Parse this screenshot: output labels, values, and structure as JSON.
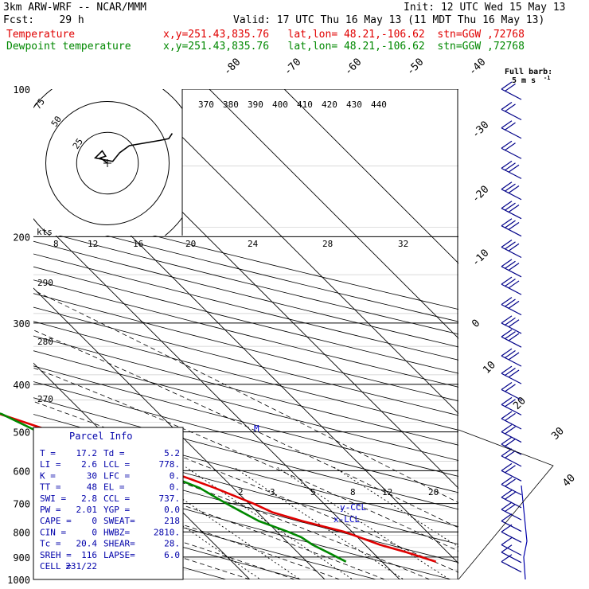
{
  "header": {
    "model": "3km ARW-WRF -- NCAR/MMM",
    "init": "Init: 12 UTC Wed 15 May 13",
    "fcst": "Fcst:    29 h",
    "valid": "Valid: 17 UTC Thu 16 May 13 (11 MDT Thu 16 May 13)",
    "temp_label": "Temperature",
    "temp_loc": "x,y=251.43,835.76   lat,lon= 48.21,-106.62  stn=GGW ,72768",
    "dew_label": "Dewpoint temperature",
    "dew_loc": "x,y=251.43,835.76   lat,lon= 48.21,-106.62  stn=GGW ,72768"
  },
  "barb_key": {
    "line1": "Full barb:",
    "line2": "5 m s"
  },
  "hodograph": {
    "unit": "kts",
    "rings": [
      "75",
      "50",
      "25"
    ]
  },
  "parcel_info": {
    "title": "Parcel Info",
    "rows": [
      {
        "l1": "T  =",
        "v1": "17.2",
        "l2": "Td =",
        "v2": "5.2"
      },
      {
        "l1": "LI =",
        "v1": "2.6",
        "l2": "LCL =",
        "v2": "778."
      },
      {
        "l1": "K  =",
        "v1": "30",
        "l2": "LFC =",
        "v2": "0."
      },
      {
        "l1": "TT =",
        "v1": "48",
        "l2": "EL  =",
        "v2": "0."
      },
      {
        "l1": "SWI =",
        "v1": "2.8",
        "l2": "CCL =",
        "v2": "737."
      },
      {
        "l1": "PW =",
        "v1": "2.01",
        "l2": "YGP =",
        "v2": "0.0"
      },
      {
        "l1": "CAPE =",
        "v1": "0",
        "l2": "SWEAT=",
        "v2": "218"
      },
      {
        "l1": "CIN =",
        "v1": "0",
        "l2": "HWBZ=",
        "v2": "2810."
      },
      {
        "l1": "Tc =",
        "v1": "20.4",
        "l2": "SHEAR=",
        "v2": "28."
      },
      {
        "l1": "SREH =",
        "v1": "116",
        "l2": "LAPSE=",
        "v2": "6.0"
      },
      {
        "l1": "CELL =",
        "v1": "231/22",
        "l2": "",
        "v2": ""
      }
    ]
  },
  "chart_data": {
    "type": "line",
    "title": "",
    "pressure_levels": [
      1000,
      900,
      800,
      700,
      600,
      500,
      400,
      300,
      200,
      100
    ],
    "pressure_labels": [
      "1000",
      "900",
      "800",
      "700",
      "600",
      "500",
      "400",
      "300",
      "200",
      "100"
    ],
    "isotherm_labels": [
      "-80",
      "-70",
      "-60",
      "-50",
      "-40",
      "-30",
      "-20",
      "-10",
      "0",
      "10",
      "20",
      "30",
      "40"
    ],
    "theta_labels": [
      "370",
      "380",
      "390",
      "400",
      "410",
      "420",
      "430",
      "440"
    ],
    "theta_left_labels": [
      "290",
      "280",
      "270"
    ],
    "mixing_ratio_labels_200": [
      "8",
      "12",
      "16",
      "20",
      "24",
      "28",
      "32"
    ],
    "mixing_ratio_labels_700": [
      "2",
      "3",
      "5",
      "8",
      "12",
      "20"
    ],
    "lcl_label": "x-LCL",
    "ccl_label": "y-CCL",
    "m_label": "M",
    "series": [
      {
        "name": "Temperature",
        "color": "#e00000",
        "points": [
          [
            920,
            17.2
          ],
          [
            880,
            14.5
          ],
          [
            850,
            12.0
          ],
          [
            800,
            9.0
          ],
          [
            760,
            4.8
          ],
          [
            730,
            2.0
          ],
          [
            700,
            0.6
          ],
          [
            650,
            -2.5
          ],
          [
            600,
            -6.5
          ],
          [
            550,
            -11.0
          ],
          [
            500,
            -16.5
          ],
          [
            450,
            -22.5
          ],
          [
            400,
            -28.5
          ],
          [
            350,
            -35.5
          ],
          [
            300,
            -42.5
          ],
          [
            260,
            -49.5
          ],
          [
            230,
            -55.5
          ],
          [
            210,
            -57.5
          ],
          [
            190,
            -56.5
          ],
          [
            170,
            -53.5
          ],
          [
            150,
            -50.0
          ],
          [
            130,
            -46.5
          ],
          [
            115,
            -44.0
          ],
          [
            100,
            -42.5
          ]
        ]
      },
      {
        "name": "Dewpoint temperature",
        "color": "#008800",
        "points": [
          [
            920,
            5.2
          ],
          [
            880,
            4.0
          ],
          [
            850,
            3.0
          ],
          [
            820,
            2.5
          ],
          [
            800,
            1.5
          ],
          [
            760,
            -1.0
          ],
          [
            730,
            -2.0
          ],
          [
            700,
            -3.0
          ],
          [
            650,
            -4.5
          ],
          [
            600,
            -8.0
          ],
          [
            560,
            -13.0
          ],
          [
            520,
            -18.0
          ],
          [
            500,
            -18.5
          ],
          [
            460,
            -21.0
          ],
          [
            420,
            -27.0
          ],
          [
            380,
            -33.0
          ],
          [
            340,
            -39.5
          ],
          [
            300,
            -46.5
          ],
          [
            270,
            -51.0
          ],
          [
            250,
            -55.0
          ],
          [
            230,
            -59.0
          ],
          [
            200,
            -63.0
          ],
          [
            180,
            -66.5
          ],
          [
            160,
            -70.0
          ],
          [
            140,
            -74.0
          ],
          [
            130,
            -78.0
          ],
          [
            120,
            -82.0
          ],
          [
            110,
            -87.0
          ],
          [
            100,
            -91.0
          ]
        ]
      }
    ],
    "wind_barbs": [
      {
        "p": 920,
        "speed_ms": 5
      },
      {
        "p": 880,
        "speed_ms": 5
      },
      {
        "p": 850,
        "speed_ms": 5
      },
      {
        "p": 800,
        "speed_ms": 5
      },
      {
        "p": 760,
        "speed_ms": 5
      },
      {
        "p": 720,
        "speed_ms": 10
      },
      {
        "p": 680,
        "speed_ms": 10
      },
      {
        "p": 640,
        "speed_ms": 10
      },
      {
        "p": 600,
        "speed_ms": 10
      },
      {
        "p": 560,
        "speed_ms": 10
      },
      {
        "p": 530,
        "speed_ms": 10
      },
      {
        "p": 500,
        "speed_ms": 10
      },
      {
        "p": 470,
        "speed_ms": 10
      },
      {
        "p": 440,
        "speed_ms": 10
      },
      {
        "p": 410,
        "speed_ms": 10
      },
      {
        "p": 380,
        "speed_ms": 15
      },
      {
        "p": 350,
        "speed_ms": 15
      },
      {
        "p": 320,
        "speed_ms": 15
      },
      {
        "p": 300,
        "speed_ms": 15
      },
      {
        "p": 275,
        "speed_ms": 15
      },
      {
        "p": 250,
        "speed_ms": 15
      },
      {
        "p": 230,
        "speed_ms": 15
      },
      {
        "p": 210,
        "speed_ms": 15
      },
      {
        "p": 190,
        "speed_ms": 15
      },
      {
        "p": 175,
        "speed_ms": 15
      },
      {
        "p": 160,
        "speed_ms": 15
      },
      {
        "p": 145,
        "speed_ms": 15
      },
      {
        "p": 132,
        "speed_ms": 10
      },
      {
        "p": 120,
        "speed_ms": 10
      },
      {
        "p": 110,
        "speed_ms": 10
      },
      {
        "p": 100,
        "speed_ms": 10
      }
    ],
    "hodograph_trace_kts": [
      [
        0,
        0
      ],
      [
        -8,
        6
      ],
      [
        -2,
        8
      ],
      [
        -6,
        14
      ],
      [
        -14,
        6
      ],
      [
        6,
        2
      ],
      [
        14,
        12
      ],
      [
        25,
        20
      ],
      [
        60,
        26
      ],
      [
        70,
        28
      ],
      [
        74,
        34
      ]
    ]
  }
}
